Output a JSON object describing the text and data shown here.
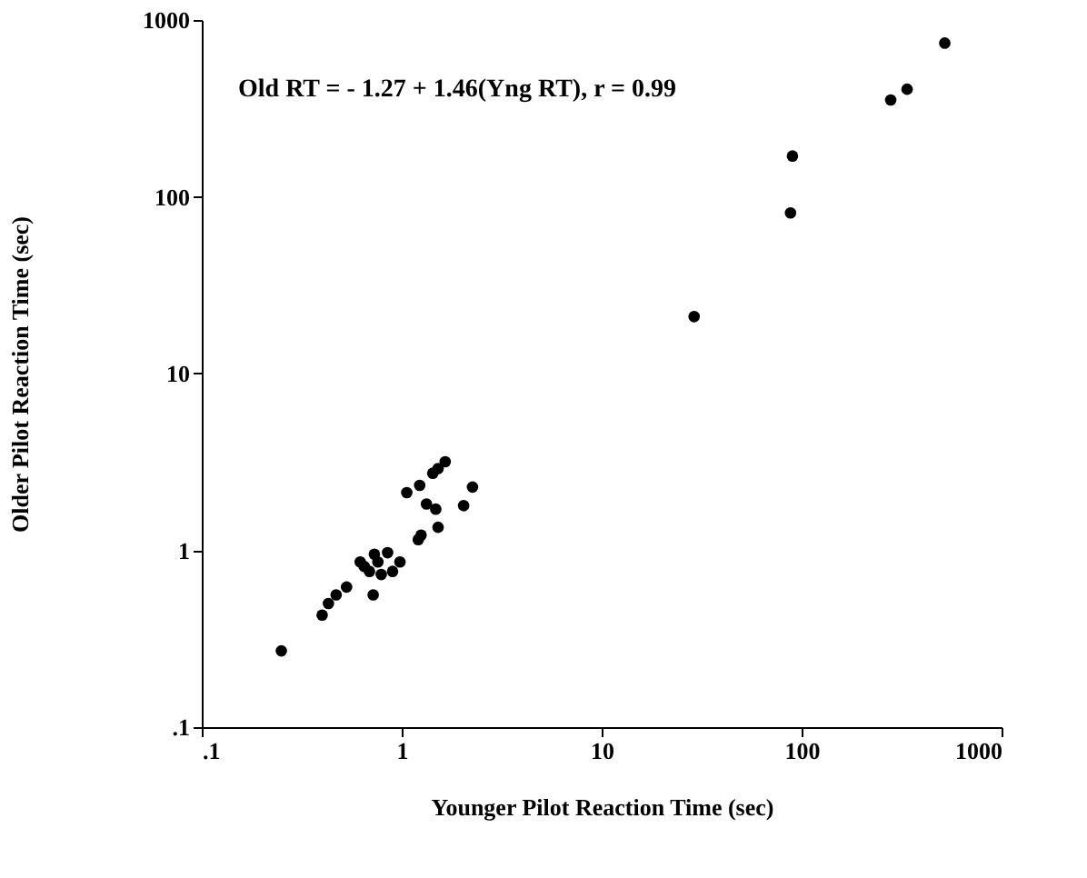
{
  "chart_data": {
    "type": "scatter",
    "xlabel": "Younger Pilot Reaction Time (sec)",
    "ylabel": "Older Pilot Reaction Time (sec)",
    "annotations": [
      "Old RT = - 1.27 + 1.46(Yng RT), r = 0.99"
    ],
    "log": "xy",
    "grid": false,
    "marker": "circle",
    "xlim": [
      0.1,
      1000
    ],
    "ylim": [
      0.1,
      1000
    ],
    "xticks": [
      {
        "value": 0.1,
        "label": ".1"
      },
      1,
      10,
      100,
      1000
    ],
    "yticks": [
      {
        "value": 0.1,
        "label": ".1"
      },
      1,
      10,
      100,
      1000
    ],
    "series": [
      {
        "color": "#000000",
        "x": [
          0.25,
          0.4,
          0.43,
          0.47,
          0.53,
          0.72,
          0.76,
          0.62,
          0.65,
          0.85,
          0.98,
          0.79,
          0.69,
          0.9,
          0.73,
          1.21,
          1.25,
          1.52,
          2.04,
          2.26,
          1.33,
          1.48,
          1.06,
          1.23,
          1.43,
          1.65,
          1.52,
          29,
          88,
          90,
          279,
          337,
          520
        ],
        "values": [
          0.27,
          0.43,
          0.5,
          0.56,
          0.62,
          0.56,
          0.86,
          0.86,
          0.81,
          0.97,
          0.86,
          0.73,
          0.76,
          0.76,
          0.95,
          1.15,
          1.22,
          1.35,
          1.79,
          2.28,
          1.83,
          1.71,
          2.12,
          2.33,
          2.73,
          3.17,
          2.9,
          21,
          81,
          170,
          353,
          406,
          740
        ]
      }
    ]
  }
}
